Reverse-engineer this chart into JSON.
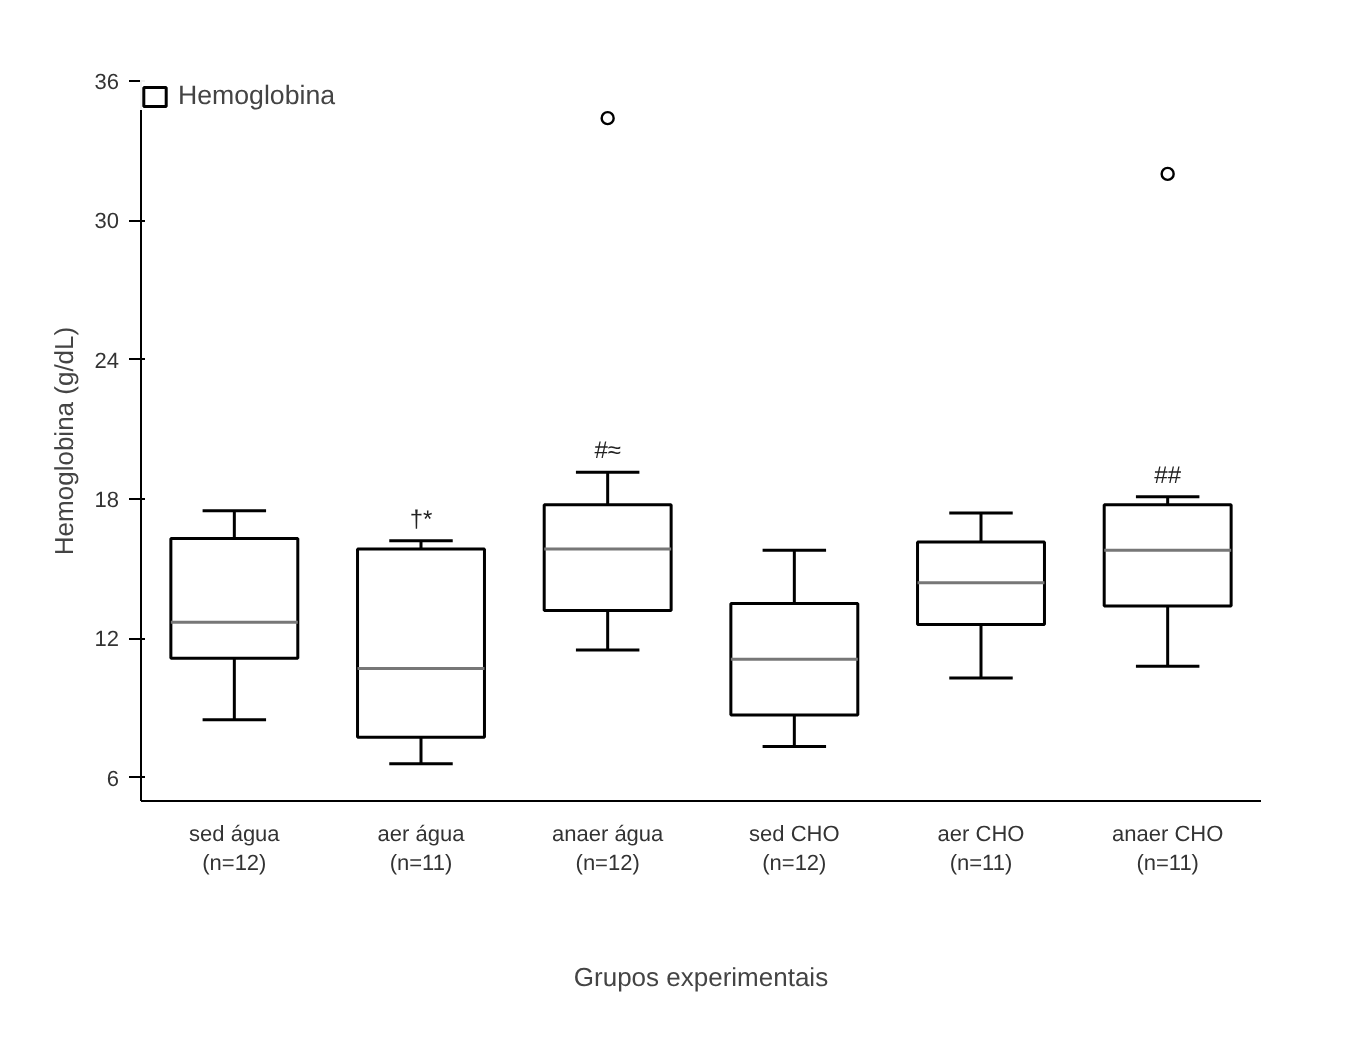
{
  "chart_data": {
    "type": "box",
    "xlabel": "Grupos experimentais",
    "ylabel": "Hemoglobina (g/dL)",
    "categories": [
      "sed água\n(n=12)",
      "aer água\n(n=11)",
      "anaer água\n(n=12)",
      "sed CHO\n(n=12)",
      "aer CHO\n(n=11)",
      "anaer CHO\n(n=11)"
    ],
    "series": [
      {
        "name": "Hemoglobina",
        "color": "#000000",
        "boxes": [
          {
            "low": 8.5,
            "q1": 11.15,
            "median": 12.7,
            "q3": 16.3,
            "high": 17.5
          },
          {
            "low": 6.6,
            "q1": 7.75,
            "median": 10.7,
            "q3": 15.85,
            "high": 16.2
          },
          {
            "low": 11.5,
            "q1": 13.2,
            "median": 15.85,
            "q3": 17.75,
            "high": 19.15,
            "outliers": [
              34.4
            ]
          },
          {
            "low": 7.35,
            "q1": 8.7,
            "median": 11.1,
            "q3": 13.5,
            "high": 15.8
          },
          {
            "low": 10.3,
            "q1": 12.6,
            "median": 14.4,
            "q3": 16.15,
            "high": 17.4
          },
          {
            "low": 10.8,
            "q1": 13.4,
            "median": 15.8,
            "q3": 17.75,
            "high": 18.1,
            "outliers": [
              32.0
            ]
          }
        ]
      }
    ],
    "annotations": [
      {
        "text": "†*",
        "x": "aer água\n(n=11)",
        "y": 16.2
      },
      {
        "text": "#≈",
        "x": "anaer água\n(n=12)",
        "y": 19.15
      },
      {
        "text": "##",
        "x": "anaer CHO\n(n=11)",
        "y": 18.1
      }
    ],
    "ylim": [
      5,
      36
    ],
    "yticks": [
      6,
      12,
      18,
      24,
      30,
      36
    ],
    "grid": false,
    "legend": "top left"
  }
}
